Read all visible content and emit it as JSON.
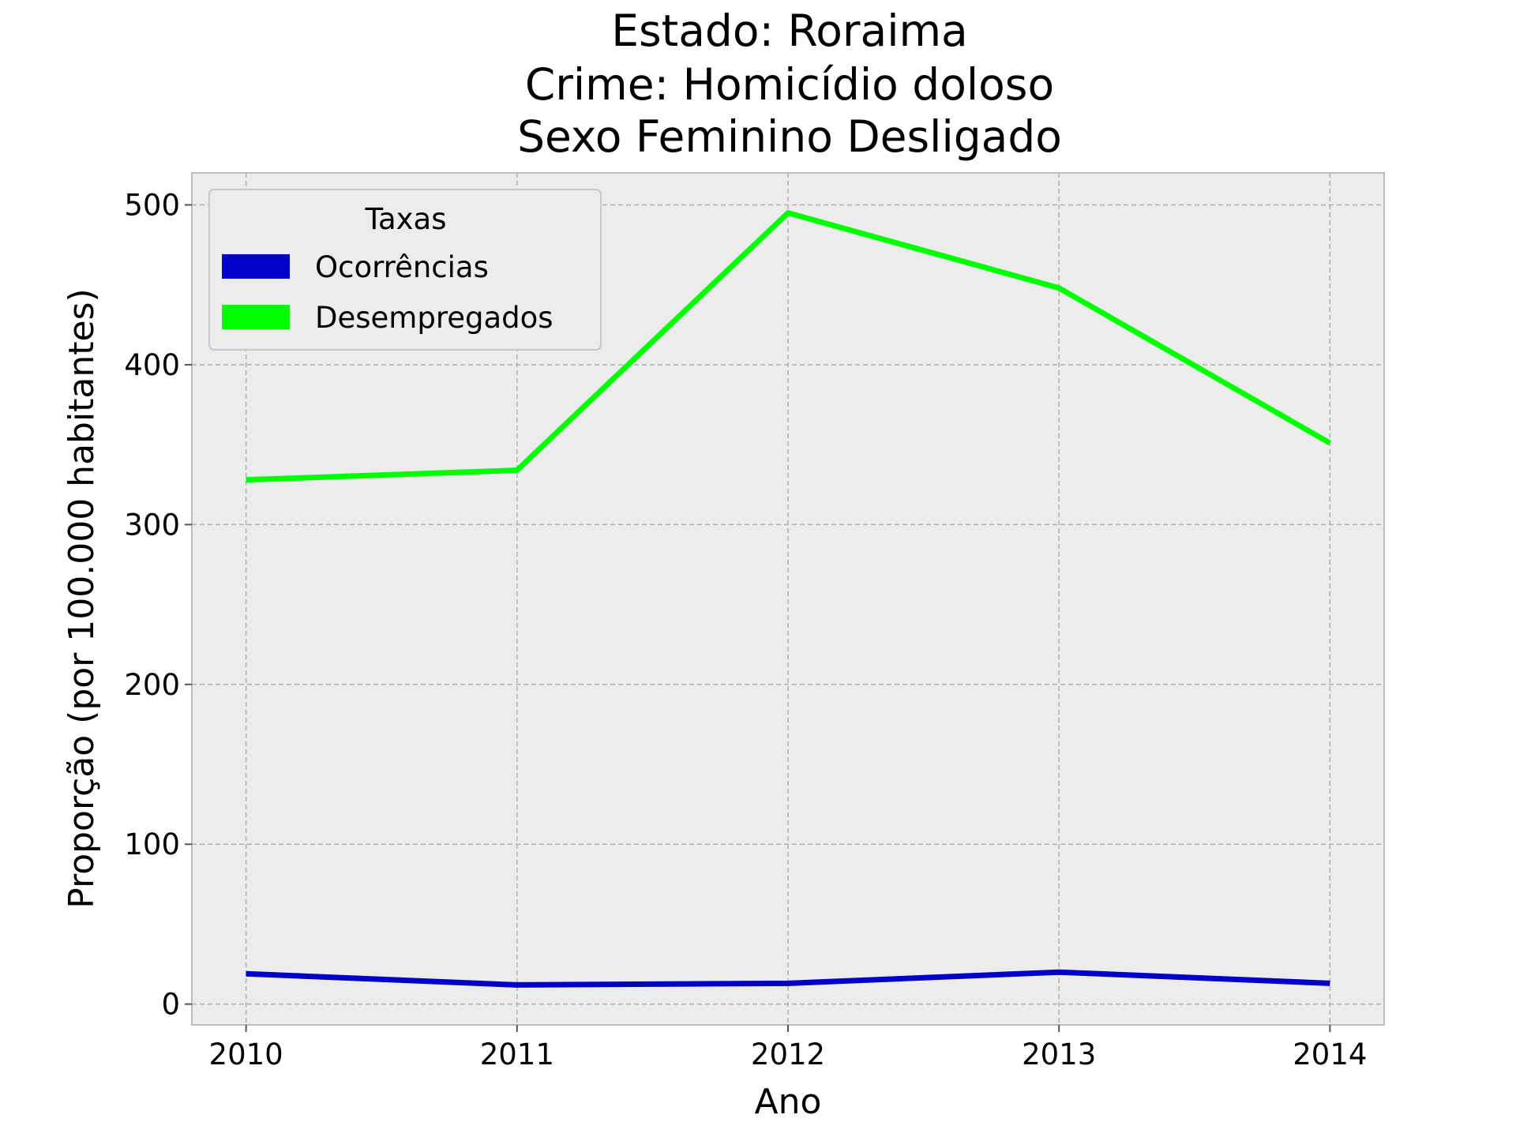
{
  "chart_data": {
    "type": "line",
    "title": [
      "Estado: Roraima",
      "Crime: Homicídio doloso",
      "Sexo  Feminino   Desligado"
    ],
    "xlabel": "Ano",
    "ylabel": "Proporção (por 100.000 habitantes)",
    "x": [
      2010,
      2011,
      2012,
      2013,
      2014
    ],
    "x_tick_labels": [
      "2010",
      "2011",
      "2012",
      "2013",
      "2014"
    ],
    "y_ticks": [
      0,
      100,
      200,
      300,
      400,
      500
    ],
    "y_tick_labels": [
      "0",
      "100",
      "200",
      "300",
      "400",
      "500"
    ],
    "xlim": [
      2009.8,
      2014.2
    ],
    "ylim": [
      -13,
      520
    ],
    "grid": true,
    "background_color": "#ececec",
    "legend": {
      "title": "Taxas",
      "placement": "upper-left"
    },
    "series": [
      {
        "name": "Ocorrências",
        "color": "#0000c8",
        "values": [
          19,
          12,
          13,
          20,
          13
        ]
      },
      {
        "name": "Desempregados",
        "color": "#00ff00",
        "values": [
          328,
          334,
          495,
          448,
          351
        ]
      }
    ]
  }
}
